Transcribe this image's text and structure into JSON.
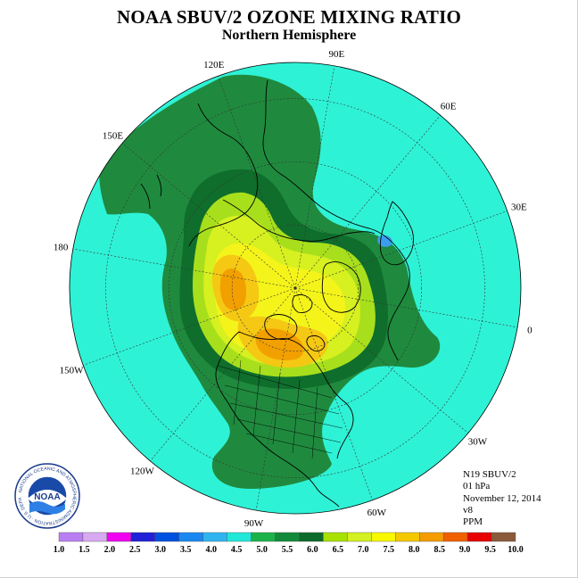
{
  "title": "NOAA SBUV/2 OZONE MIXING RATIO",
  "subtitle": "Northern Hemisphere",
  "longitude_labels": [
    {
      "text": "90E",
      "lon": 90
    },
    {
      "text": "60E",
      "lon": 60
    },
    {
      "text": "30E",
      "lon": 30
    },
    {
      "text": "0",
      "lon": 0
    },
    {
      "text": "30W",
      "lon": -30
    },
    {
      "text": "60W",
      "lon": -60
    },
    {
      "text": "90W",
      "lon": -90
    },
    {
      "text": "120W",
      "lon": -120
    },
    {
      "text": "150W",
      "lon": -150
    },
    {
      "text": "180",
      "lon": 180
    },
    {
      "text": "150E",
      "lon": 150
    },
    {
      "text": "120E",
      "lon": 120
    }
  ],
  "info": {
    "satellite": "N19 SBUV/2",
    "level": "01 hPa",
    "date": "November 12, 2014",
    "version": "v8",
    "units": "PPM"
  },
  "logo": {
    "text": "NOAA",
    "ring_text": "NATIONAL OCEANIC AND ATMOSPHERIC ADMINISTRATION · U.S. DEPARTMENT OF COMMERCE"
  },
  "colorbar": {
    "ticks": [
      "1.0",
      "1.5",
      "2.0",
      "2.5",
      "3.0",
      "3.5",
      "4.0",
      "4.5",
      "5.0",
      "5.5",
      "6.0",
      "6.5",
      "7.0",
      "7.5",
      "8.0",
      "8.5",
      "9.0",
      "9.5",
      "10.0"
    ],
    "colors": [
      "#b97ff2",
      "#d8a8f0",
      "#f000f0",
      "#2020d8",
      "#0050e0",
      "#1a88f0",
      "#30b4f0",
      "#20e8d8",
      "#1cb24a",
      "#128a3a",
      "#0e6a2a",
      "#a8e000",
      "#d4f020",
      "#f8f800",
      "#f4c800",
      "#f49c00",
      "#f06000",
      "#e80000",
      "#8a5a3a"
    ]
  },
  "colors": {
    "ocean_disk": "#2ef2d6",
    "level_5_0": "#1f8a3e",
    "level_5_5": "#0f6e2c",
    "level_6_0": "#a8df1c",
    "level_6_5": "#d6f020",
    "level_7_0": "#f4f41a",
    "level_7_5": "#f5c814",
    "level_8_0": "#f2a000"
  }
}
